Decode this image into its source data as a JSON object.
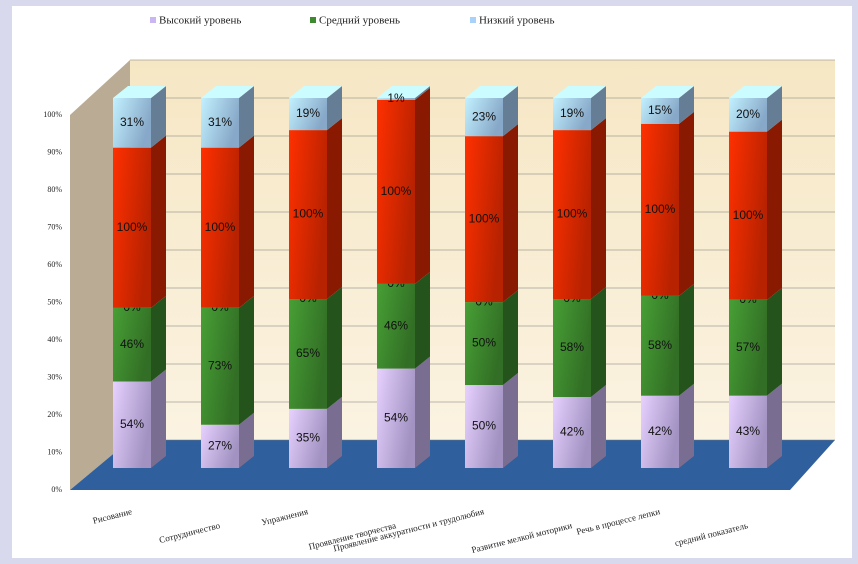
{
  "chart_data": {
    "type": "bar",
    "stacking": "percent",
    "legend": "top",
    "grid": true,
    "categories": [
      "Рисование",
      "Сотрудничество",
      "Упражнения",
      "Проявление творчества",
      "Проявление аккуратности и трудолюбия",
      "Развитие мелкой моторики",
      "Речь в процессе лепки",
      "средний показатель"
    ],
    "ylim": [
      0,
      100
    ],
    "yticks": [
      {
        "value": 0,
        "label": "0%"
      },
      {
        "value": 10,
        "label": "10%"
      },
      {
        "value": 20,
        "label": "20%"
      },
      {
        "value": 30,
        "label": "30%"
      },
      {
        "value": 40,
        "label": "40%"
      },
      {
        "value": 50,
        "label": "50%"
      },
      {
        "value": 60,
        "label": "60%"
      },
      {
        "value": 70,
        "label": "70%"
      },
      {
        "value": 80,
        "label": "80%"
      },
      {
        "value": 90,
        "label": "90%"
      },
      {
        "value": 100,
        "label": "100%"
      }
    ],
    "series": [
      {
        "name": "Высокий уровень",
        "color": "#c9b6f2",
        "values": [
          54,
          27,
          35,
          54,
          50,
          42,
          42,
          43
        ],
        "value_labels": [
          "54%",
          "27%",
          "35%",
          "54%",
          "50%",
          "42%",
          "42%",
          "43%"
        ]
      },
      {
        "name": "Средний уровень",
        "color": "#3e8a2e",
        "values": [
          46,
          73,
          65,
          46,
          50,
          58,
          58,
          57
        ],
        "value_labels": [
          "46%",
          "73%",
          "65%",
          "46%",
          "50%",
          "58%",
          "58%",
          "57%"
        ]
      },
      {
        "color": "#f2c200",
        "values": [
          0,
          0,
          0,
          0,
          0,
          0,
          0,
          0
        ],
        "value_labels": [
          "0%",
          "0%",
          "0%",
          "0%",
          "0%",
          "0%",
          "0%",
          "0%"
        ]
      },
      {
        "color": "#e52a00",
        "values": [
          100,
          100,
          100,
          100,
          100,
          100,
          100,
          100
        ],
        "value_labels": [
          "100%",
          "100%",
          "100%",
          "100%",
          "100%",
          "100%",
          "100%",
          "100%"
        ]
      },
      {
        "name": "Низкий уровень",
        "color": "#a9d2fa",
        "values": [
          31,
          31,
          19,
          1,
          23,
          19,
          15,
          20
        ],
        "value_labels": [
          "31%",
          "31%",
          "19%",
          "1%",
          "23%",
          "19%",
          "15%",
          "20%"
        ]
      }
    ]
  }
}
